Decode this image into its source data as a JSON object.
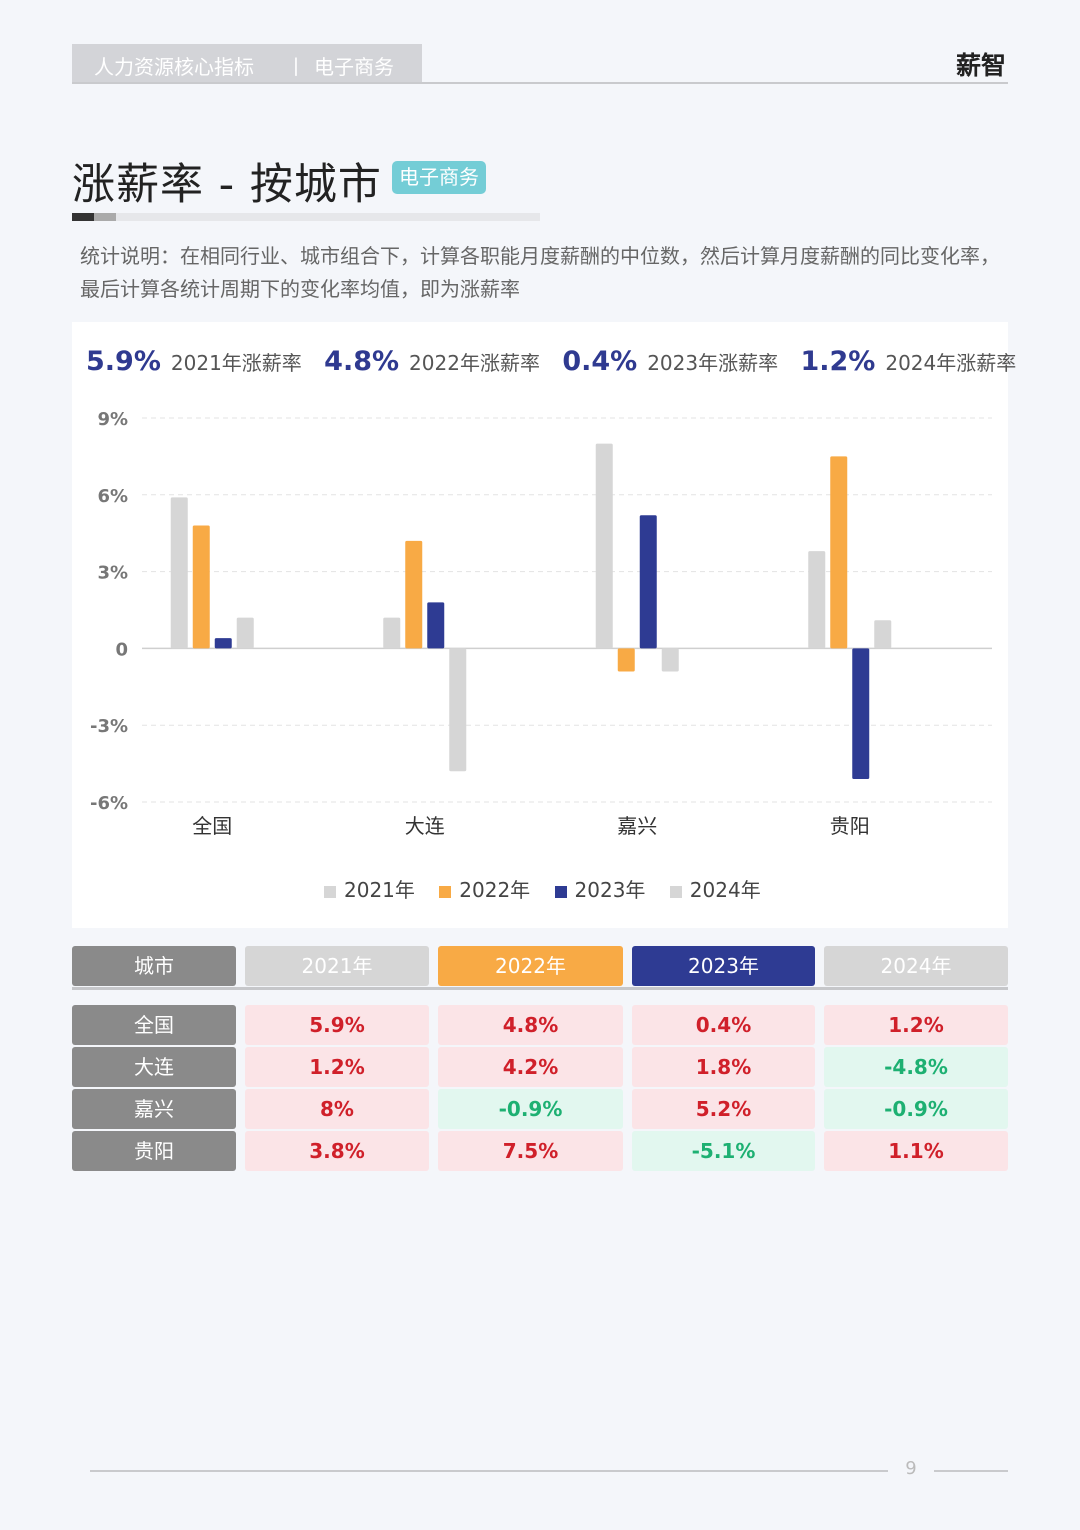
{
  "header": {
    "section": "人力资源核心指标",
    "divider": "丨",
    "industry": "电子商务",
    "brand": "薪智"
  },
  "page_title": "涨薪率 - 按城市",
  "title_tag": "电子商务",
  "description": "统计说明：在相同行业、城市组合下，计算各职能月度薪酬的中位数，然后计算月度薪酬的同比变化率，最后计算各统计周期下的变化率均值，即为涨薪率",
  "summary": [
    {
      "value": "5.9%",
      "label": "2021年涨薪率"
    },
    {
      "value": "4.8%",
      "label": "2022年涨薪率"
    },
    {
      "value": "0.4%",
      "label": "2023年涨薪率"
    },
    {
      "value": "1.2%",
      "label": "2024年涨薪率"
    }
  ],
  "colors": {
    "s2021": "#d6d6d6",
    "s2022": "#f8aa45",
    "s2023": "#2e3b93",
    "s2024": "#d6d6d6",
    "positive_bg": "#fbe4e7",
    "positive_text": "#d0202a",
    "negative_bg": "#e2f7ef",
    "negative_text": "#1db072",
    "tag": "#74cdd6"
  },
  "chart_data": {
    "type": "bar",
    "categories": [
      "全国",
      "大连",
      "嘉兴",
      "贵阳"
    ],
    "series": [
      {
        "name": "2021年",
        "values": [
          5.9,
          1.2,
          8.0,
          3.8
        ]
      },
      {
        "name": "2022年",
        "values": [
          4.8,
          4.2,
          -0.9,
          7.5
        ]
      },
      {
        "name": "2023年",
        "values": [
          0.4,
          1.8,
          5.2,
          -5.1
        ]
      },
      {
        "name": "2024年",
        "values": [
          1.2,
          -4.8,
          -0.9,
          1.1
        ]
      }
    ],
    "yticks": [
      "9%",
      "6%",
      "3%",
      "0",
      "-3%",
      "-6%"
    ],
    "ytick_values": [
      9,
      6,
      3,
      0,
      -3,
      -6
    ],
    "ylim": [
      -6,
      9
    ],
    "grid": true,
    "legend_position": "bottom"
  },
  "table": {
    "headers": [
      "城市",
      "2021年",
      "2022年",
      "2023年",
      "2024年"
    ],
    "rows": [
      {
        "city": "全国",
        "values": [
          "5.9%",
          "4.8%",
          "0.4%",
          "1.2%"
        ]
      },
      {
        "city": "大连",
        "values": [
          "1.2%",
          "4.2%",
          "1.8%",
          "-4.8%"
        ]
      },
      {
        "city": "嘉兴",
        "values": [
          "8%",
          "-0.9%",
          "5.2%",
          "-0.9%"
        ]
      },
      {
        "city": "贵阳",
        "values": [
          "3.8%",
          "7.5%",
          "-5.1%",
          "1.1%"
        ]
      }
    ]
  },
  "page_number": "9"
}
